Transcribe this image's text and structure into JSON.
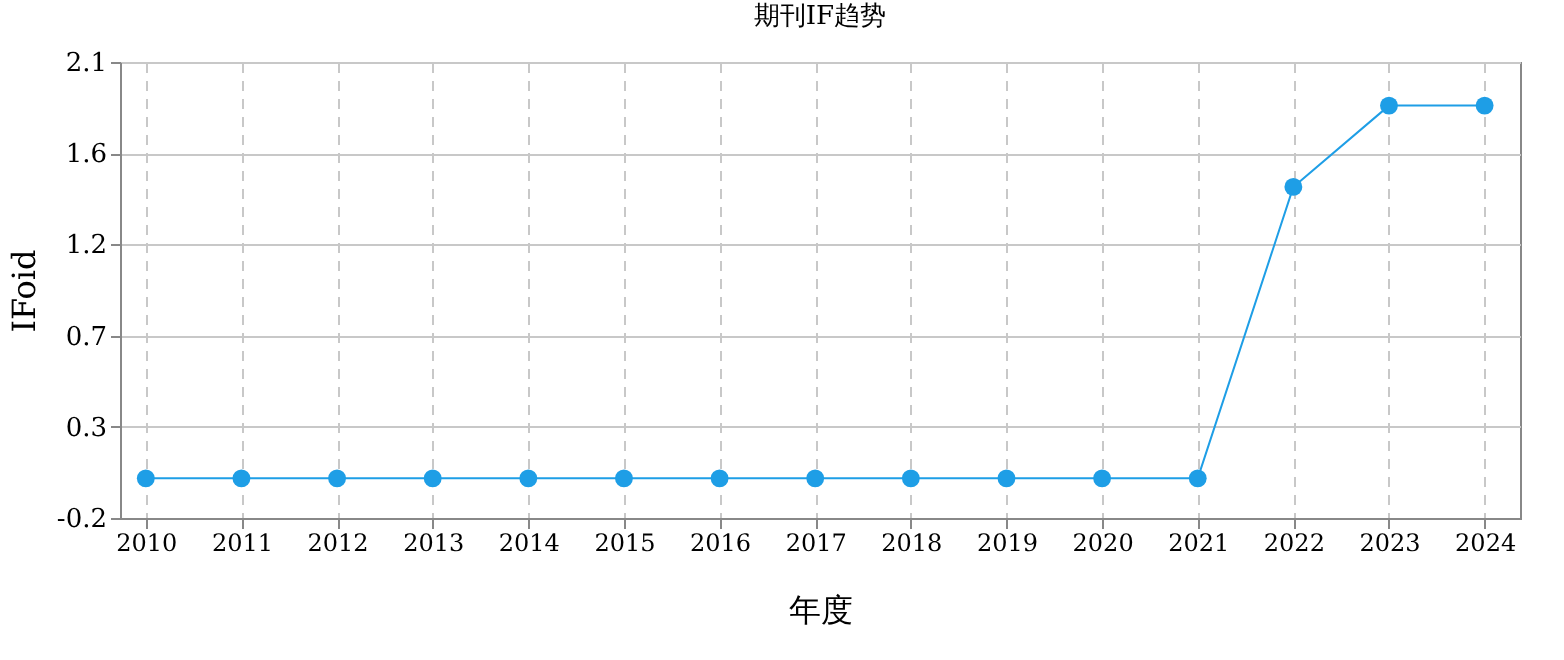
{
  "chart_data": {
    "type": "line",
    "title": "期刊IF趋势",
    "xlabel": "年度",
    "ylabel": "IFoid",
    "x": [
      2010,
      2011,
      2012,
      2013,
      2014,
      2015,
      2016,
      2017,
      2018,
      2019,
      2020,
      2021,
      2022,
      2023,
      2024
    ],
    "series": [
      {
        "color": "#1e9ee6",
        "values": [
          0,
          0,
          0,
          0,
          0,
          0,
          0,
          0,
          0,
          0,
          0,
          0,
          1.47,
          1.88,
          1.88
        ]
      }
    ],
    "xlim": [
      2009.73,
      2024.37
    ],
    "xticks": [
      2010,
      2011,
      2012,
      2013,
      2014,
      2015,
      2016,
      2017,
      2018,
      2019,
      2020,
      2021,
      2022,
      2023,
      2024
    ],
    "ylim": [
      -0.2,
      2.1
    ],
    "yticks": [
      {
        "value": -0.2,
        "label": "-0.2"
      },
      {
        "value": 0.26,
        "label": "0.3"
      },
      {
        "value": 0.72,
        "label": "0.7"
      },
      {
        "value": 1.18,
        "label": "1.2"
      },
      {
        "value": 1.64,
        "label": "1.6"
      },
      {
        "value": 2.1,
        "label": "2.1"
      }
    ],
    "grid": true,
    "marker": "circle",
    "line_style": "solid"
  }
}
